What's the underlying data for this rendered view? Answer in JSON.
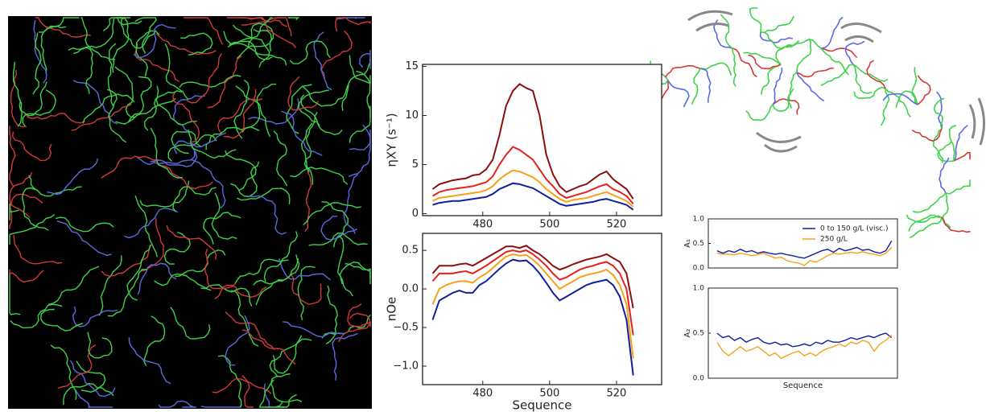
{
  "chart_data": [
    {
      "type": "line",
      "ylabel": "ηXY (s⁻¹)",
      "x": [
        465,
        467,
        469,
        471,
        473,
        475,
        477,
        479,
        481,
        483,
        485,
        487,
        489,
        491,
        493,
        495,
        497,
        499,
        501,
        503,
        505,
        507,
        509,
        511,
        513,
        515,
        517,
        519,
        521,
        523,
        525
      ],
      "series": [
        {
          "color": "#8b0f0f",
          "values": [
            2.5,
            3.0,
            3.2,
            3.4,
            3.5,
            3.6,
            3.9,
            4.0,
            4.5,
            5.5,
            8.0,
            11.0,
            12.5,
            13.2,
            12.8,
            12.5,
            10.0,
            6.0,
            4.0,
            2.8,
            2.2,
            2.5,
            2.8,
            3.0,
            3.5,
            4.0,
            4.3,
            3.5,
            3.0,
            2.5,
            1.5
          ]
        },
        {
          "color": "#e8201c",
          "values": [
            1.8,
            2.2,
            2.4,
            2.5,
            2.6,
            2.7,
            2.8,
            3.0,
            3.2,
            3.8,
            5.0,
            6.0,
            6.8,
            6.5,
            6.0,
            5.5,
            4.5,
            3.5,
            2.8,
            2.0,
            1.6,
            1.8,
            2.0,
            2.2,
            2.5,
            2.8,
            3.0,
            2.5,
            2.2,
            1.8,
            1.0
          ]
        },
        {
          "color": "#f5a21b",
          "values": [
            1.3,
            1.6,
            1.7,
            1.8,
            1.9,
            2.0,
            2.1,
            2.2,
            2.4,
            2.8,
            3.5,
            4.0,
            4.4,
            4.3,
            4.0,
            3.7,
            3.2,
            2.5,
            2.0,
            1.5,
            1.2,
            1.4,
            1.5,
            1.6,
            1.8,
            2.0,
            2.2,
            1.9,
            1.6,
            1.3,
            0.7
          ]
        },
        {
          "color": "#10209a",
          "values": [
            0.9,
            1.1,
            1.2,
            1.3,
            1.3,
            1.4,
            1.5,
            1.6,
            1.7,
            2.0,
            2.5,
            2.8,
            3.1,
            3.0,
            2.8,
            2.6,
            2.2,
            1.8,
            1.4,
            1.0,
            0.8,
            0.9,
            1.0,
            1.1,
            1.2,
            1.4,
            1.5,
            1.3,
            1.1,
            0.9,
            0.4
          ]
        }
      ],
      "xlim": [
        462,
        533.5
      ],
      "xticks": [
        480,
        500,
        520
      ],
      "ylim": [
        -0.2,
        15.2
      ],
      "yticks": [
        0,
        5,
        10,
        15
      ]
    },
    {
      "type": "line",
      "ylabel": "nOe",
      "xlabel": "Sequence",
      "x": [
        465,
        467,
        469,
        471,
        473,
        475,
        477,
        479,
        481,
        483,
        485,
        487,
        489,
        491,
        493,
        495,
        497,
        499,
        501,
        503,
        505,
        507,
        509,
        511,
        513,
        515,
        517,
        519,
        521,
        523,
        525
      ],
      "series": [
        {
          "color": "#8b0f0f",
          "values": [
            0.2,
            0.3,
            0.3,
            0.3,
            0.32,
            0.33,
            0.3,
            0.35,
            0.4,
            0.45,
            0.5,
            0.55,
            0.55,
            0.53,
            0.56,
            0.5,
            0.45,
            0.38,
            0.3,
            0.25,
            0.28,
            0.32,
            0.35,
            0.38,
            0.4,
            0.42,
            0.45,
            0.4,
            0.35,
            0.2,
            -0.25
          ]
        },
        {
          "color": "#e8201c",
          "values": [
            0.1,
            0.2,
            0.2,
            0.2,
            0.22,
            0.23,
            0.2,
            0.25,
            0.3,
            0.36,
            0.42,
            0.48,
            0.5,
            0.48,
            0.5,
            0.45,
            0.38,
            0.3,
            0.2,
            0.12,
            0.15,
            0.2,
            0.25,
            0.28,
            0.3,
            0.33,
            0.35,
            0.3,
            0.2,
            0.0,
            -0.6
          ]
        },
        {
          "color": "#f5a21b",
          "values": [
            -0.2,
            0.0,
            0.05,
            0.08,
            0.1,
            0.1,
            0.08,
            0.15,
            0.2,
            0.27,
            0.35,
            0.42,
            0.45,
            0.43,
            0.44,
            0.38,
            0.3,
            0.2,
            0.1,
            0.0,
            0.05,
            0.1,
            0.15,
            0.18,
            0.2,
            0.22,
            0.25,
            0.18,
            0.05,
            -0.2,
            -0.9
          ]
        },
        {
          "color": "#10209a",
          "values": [
            -0.4,
            -0.15,
            -0.1,
            -0.05,
            -0.02,
            -0.05,
            -0.05,
            0.05,
            0.1,
            0.18,
            0.26,
            0.33,
            0.38,
            0.36,
            0.37,
            0.3,
            0.2,
            0.08,
            -0.05,
            -0.15,
            -0.1,
            -0.05,
            0.0,
            0.05,
            0.08,
            0.1,
            0.12,
            0.05,
            -0.1,
            -0.4,
            -1.12
          ]
        }
      ],
      "xlim": [
        462,
        533.5
      ],
      "xticks": [
        480,
        500,
        520
      ],
      "ylim": [
        -1.24,
        0.72
      ],
      "yticks": [
        {
          "value": -1,
          "label": "−1.0"
        },
        {
          "value": -0.5,
          "label": "−0.5"
        },
        {
          "value": 0,
          "label": "0.0"
        },
        0.5
      ]
    },
    {
      "type": "line",
      "ylabel": "A₁",
      "legend": "upper right",
      "x": [
        465,
        467,
        469,
        471,
        473,
        475,
        477,
        479,
        481,
        483,
        485,
        487,
        489,
        491,
        493,
        495,
        497,
        499,
        501,
        503,
        505,
        507,
        509,
        511,
        513,
        515,
        517,
        519,
        521,
        523,
        525
      ],
      "series": [
        {
          "name": "0 to 150 g/L (visc.)",
          "color": "#10209a",
          "values": [
            0.35,
            0.3,
            0.35,
            0.32,
            0.38,
            0.33,
            0.35,
            0.3,
            0.33,
            0.3,
            0.28,
            0.3,
            0.27,
            0.25,
            0.22,
            0.2,
            0.25,
            0.3,
            0.35,
            0.38,
            0.32,
            0.4,
            0.35,
            0.38,
            0.42,
            0.36,
            0.38,
            0.33,
            0.3,
            0.35,
            0.55
          ]
        },
        {
          "name": "250 g/L",
          "color": "#f5a21b",
          "values": [
            0.3,
            0.28,
            0.28,
            0.27,
            0.3,
            0.28,
            0.25,
            0.27,
            0.3,
            0.25,
            0.2,
            0.22,
            0.15,
            0.12,
            0.1,
            0.05,
            0.15,
            0.12,
            0.18,
            0.25,
            0.3,
            0.28,
            0.3,
            0.32,
            0.3,
            0.33,
            0.3,
            0.28,
            0.25,
            0.3,
            0.42
          ]
        }
      ],
      "xlim": [
        462,
        527
      ],
      "ylim": [
        0,
        1
      ],
      "yticks": [
        {
          "value": 0,
          "label": "0.0"
        },
        0.5,
        {
          "value": 1,
          "label": "1.0"
        }
      ]
    },
    {
      "type": "line",
      "ylabel": "A₂",
      "xlabel": "Sequence",
      "x": [
        465,
        467,
        469,
        471,
        473,
        475,
        477,
        479,
        481,
        483,
        485,
        487,
        489,
        491,
        493,
        495,
        497,
        499,
        501,
        503,
        505,
        507,
        509,
        511,
        513,
        515,
        517,
        519,
        521,
        523,
        525
      ],
      "series": [
        {
          "color": "#10209a",
          "values": [
            0.5,
            0.45,
            0.47,
            0.42,
            0.45,
            0.4,
            0.43,
            0.45,
            0.4,
            0.38,
            0.4,
            0.37,
            0.38,
            0.35,
            0.36,
            0.38,
            0.36,
            0.4,
            0.38,
            0.42,
            0.4,
            0.4,
            0.42,
            0.45,
            0.43,
            0.45,
            0.47,
            0.45,
            0.48,
            0.5,
            0.45
          ]
        },
        {
          "color": "#f5a21b",
          "values": [
            0.4,
            0.3,
            0.25,
            0.3,
            0.35,
            0.3,
            0.32,
            0.35,
            0.3,
            0.25,
            0.28,
            0.22,
            0.25,
            0.28,
            0.3,
            0.25,
            0.28,
            0.25,
            0.3,
            0.33,
            0.35,
            0.38,
            0.35,
            0.4,
            0.38,
            0.42,
            0.4,
            0.3,
            0.38,
            0.42,
            0.48
          ]
        }
      ],
      "xlim": [
        462,
        527
      ],
      "ylim": [
        0,
        1
      ],
      "yticks": [
        {
          "value": 0,
          "label": "0.0"
        },
        0.5,
        {
          "value": 1,
          "label": "1.0"
        }
      ]
    }
  ]
}
